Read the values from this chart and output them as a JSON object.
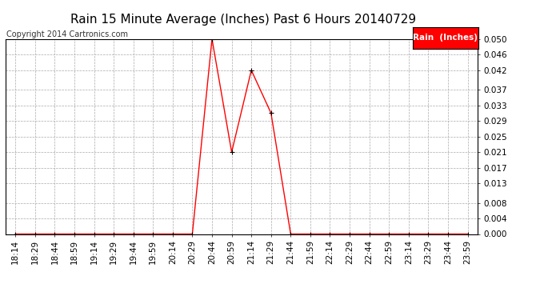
{
  "title": "Rain 15 Minute Average (Inches) Past 6 Hours 20140729",
  "copyright": "Copyright 2014 Cartronics.com",
  "legend_label": "Rain  (Inches)",
  "legend_bg": "#FF0000",
  "legend_text_color": "#FFFFFF",
  "x_labels": [
    "18:14",
    "18:29",
    "18:44",
    "18:59",
    "19:14",
    "19:29",
    "19:44",
    "19:59",
    "20:14",
    "20:29",
    "20:44",
    "20:59",
    "21:14",
    "21:29",
    "21:44",
    "21:59",
    "22:14",
    "22:29",
    "22:44",
    "22:59",
    "23:14",
    "23:29",
    "23:44",
    "23:59"
  ],
  "y_values": [
    0.0,
    0.0,
    0.0,
    0.0,
    0.0,
    0.0,
    0.0,
    0.0,
    0.0,
    0.0,
    0.05,
    0.021,
    0.042,
    0.031,
    0.0,
    0.0,
    0.0,
    0.0,
    0.0,
    0.0,
    0.0,
    0.0,
    0.0,
    0.0
  ],
  "y_ticks": [
    0.0,
    0.004,
    0.008,
    0.013,
    0.017,
    0.021,
    0.025,
    0.029,
    0.033,
    0.037,
    0.042,
    0.046,
    0.05
  ],
  "line_color": "#FF0000",
  "marker_color": "#000000",
  "bg_color": "#FFFFFF",
  "plot_bg_color": "#FFFFFF",
  "grid_color": "#AAAAAA",
  "title_fontsize": 11,
  "copyright_fontsize": 7,
  "tick_fontsize": 7.5,
  "legend_fontsize": 7.5,
  "ylim": [
    0.0,
    0.05
  ]
}
